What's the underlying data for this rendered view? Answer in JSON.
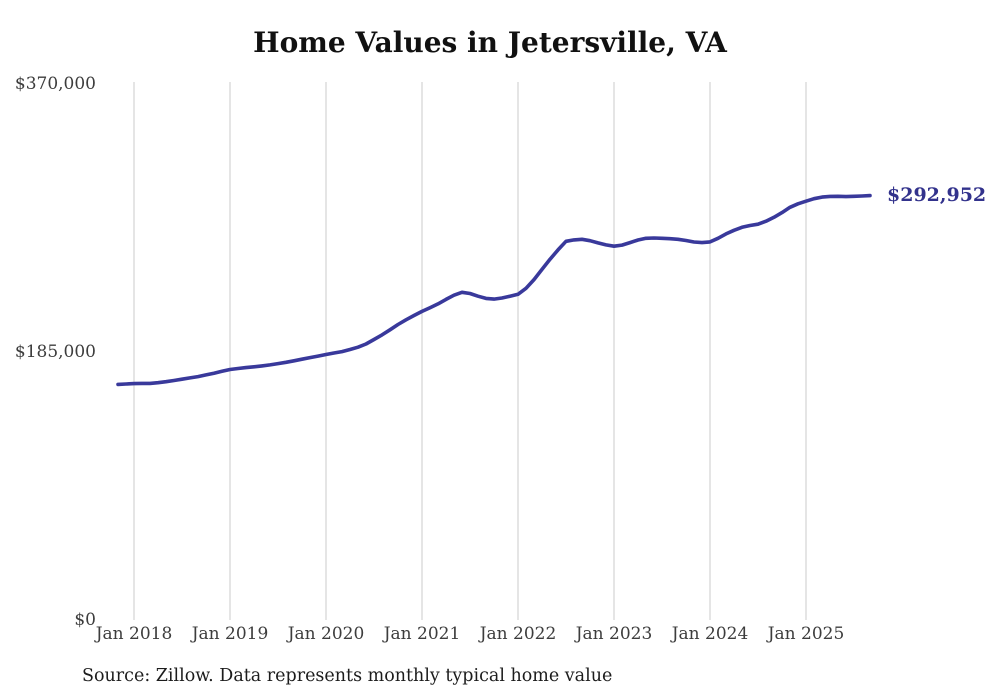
{
  "chart_data": {
    "type": "line",
    "title": "Home Values in Jetersville, VA",
    "source_note": "Source: Zillow. Data represents monthly typical home value",
    "end_label": "$292,952",
    "last_value": 292952,
    "ylim": [
      0,
      370000
    ],
    "grid": "vertical-only",
    "legend": "none",
    "line_color": "#39399b",
    "end_label_color": "#32328c",
    "grid_color": "#cbcbcb",
    "axis_label_color": "#3d3d3d",
    "title_color": "#111111",
    "y_ticks": [
      {
        "label": "$370,000",
        "value": 370000
      },
      {
        "label": "$185,000",
        "value": 185000
      },
      {
        "label": "$0",
        "value": 0
      }
    ],
    "x_ticks": [
      {
        "label": "Jan 2018",
        "month_index": 2
      },
      {
        "label": "Jan 2019",
        "month_index": 14
      },
      {
        "label": "Jan 2020",
        "month_index": 26
      },
      {
        "label": "Jan 2021",
        "month_index": 38
      },
      {
        "label": "Jan 2022",
        "month_index": 50
      },
      {
        "label": "Jan 2023",
        "month_index": 62
      },
      {
        "label": "Jan 2024",
        "month_index": 74
      },
      {
        "label": "Jan 2025",
        "month_index": 86
      }
    ],
    "series": [
      {
        "name": "Monthly typical home value",
        "start_month": "2017-11",
        "end_month": "2025-09",
        "values": [
          162600,
          162900,
          163200,
          163300,
          163300,
          163800,
          164500,
          165300,
          166200,
          167100,
          168000,
          169200,
          170400,
          171700,
          172900,
          173600,
          174200,
          174800,
          175400,
          176100,
          177000,
          177900,
          178900,
          180000,
          181100,
          182200,
          183300,
          184300,
          185300,
          186700,
          188300,
          190500,
          193600,
          196800,
          200300,
          204000,
          207200,
          210200,
          213000,
          215600,
          218200,
          221300,
          224200,
          226200,
          225400,
          223500,
          222000,
          221500,
          222300,
          223500,
          224800,
          229000,
          235000,
          242000,
          249000,
          255500,
          261400,
          262400,
          262800,
          261800,
          260300,
          258900,
          258000,
          258800,
          260500,
          262300,
          263500,
          263700,
          263500,
          263200,
          262800,
          262000,
          260900,
          260500,
          261000,
          263500,
          266500,
          269000,
          271100,
          272300,
          273200,
          275300,
          278000,
          281200,
          284900,
          287300,
          289100,
          290800,
          291900,
          292400,
          292500,
          292300,
          292500,
          292700,
          292952
        ]
      }
    ]
  }
}
